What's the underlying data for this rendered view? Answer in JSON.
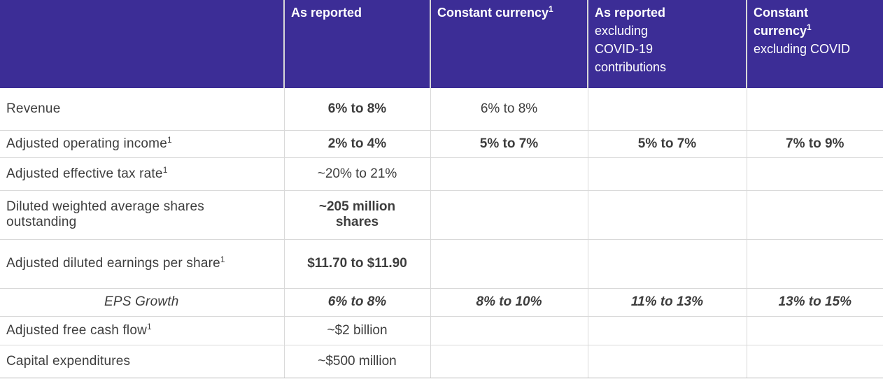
{
  "table": {
    "colors": {
      "header_bg": "#3C2D96",
      "header_text": "#FFFFFF",
      "header_divider": "#D8D8D8",
      "body_text": "#3D3D3D",
      "grid_line": "#D9D9D9",
      "bottom_line": "#B9B9B9"
    },
    "header": {
      "columns": [
        {
          "name": "metric",
          "lines": []
        },
        {
          "name": "as-reported",
          "lines": [
            {
              "text": "As reported",
              "bold": true
            }
          ]
        },
        {
          "name": "constant-currency",
          "lines": [
            {
              "text": "Constant currency",
              "bold": true,
              "sup": "1"
            }
          ]
        },
        {
          "name": "as-reported-excluding-covid",
          "lines": [
            {
              "text": "As reported",
              "bold": true
            },
            {
              "text": "excluding"
            },
            {
              "text": "COVID-19"
            },
            {
              "text": "contributions"
            }
          ]
        },
        {
          "name": "constant-currency-excluding-covid",
          "lines": [
            {
              "text": "Constant",
              "bold": true
            },
            {
              "text": "currency",
              "bold": true,
              "sup": "1"
            },
            {
              "text": "excluding COVID"
            }
          ]
        }
      ]
    },
    "rows": [
      {
        "label": {
          "text": "Revenue"
        },
        "cells": [
          {
            "text": "6% to 8%",
            "bold": true
          },
          {
            "text": "6% to 8%"
          },
          {},
          {}
        ]
      },
      {
        "label": {
          "text": "Adjusted operating income",
          "sup": "1"
        },
        "cells": [
          {
            "text": "2% to 4%",
            "bold": true
          },
          {
            "text": "5% to 7%",
            "bold": true
          },
          {
            "text": "5% to 7%",
            "bold": true
          },
          {
            "text": "7% to 9%",
            "bold": true
          }
        ]
      },
      {
        "label": {
          "text": "Adjusted effective tax rate",
          "sup": "1"
        },
        "cells": [
          {
            "text": "~20% to 21%"
          },
          {},
          {},
          {}
        ]
      },
      {
        "label": {
          "lines": [
            "Diluted weighted average shares",
            "outstanding"
          ]
        },
        "cells": [
          {
            "lines": [
              "~205 million",
              "shares"
            ],
            "bold": true
          },
          {},
          {},
          {}
        ]
      },
      {
        "label": {
          "text": "Adjusted diluted earnings per share",
          "sup": "1"
        },
        "cells": [
          {
            "text": "$11.70 to $11.90",
            "bold": true
          },
          {},
          {},
          {}
        ]
      },
      {
        "label": {
          "text": "EPS Growth",
          "italic": true,
          "center": true
        },
        "cells": [
          {
            "text": "6% to 8%",
            "bold": true,
            "italic": true
          },
          {
            "text": "8% to 10%",
            "bold": true,
            "italic": true
          },
          {
            "text": "11% to 13%",
            "bold": true,
            "italic": true
          },
          {
            "text": "13% to 15%",
            "bold": true,
            "italic": true
          }
        ]
      },
      {
        "label": {
          "text": "Adjusted free cash flow",
          "sup": "1"
        },
        "cells": [
          {
            "text": "~$2 billion"
          },
          {},
          {},
          {}
        ]
      },
      {
        "label": {
          "text": "Capital expenditures"
        },
        "cells": [
          {
            "text": "~$500 million"
          },
          {},
          {},
          {}
        ]
      }
    ]
  }
}
